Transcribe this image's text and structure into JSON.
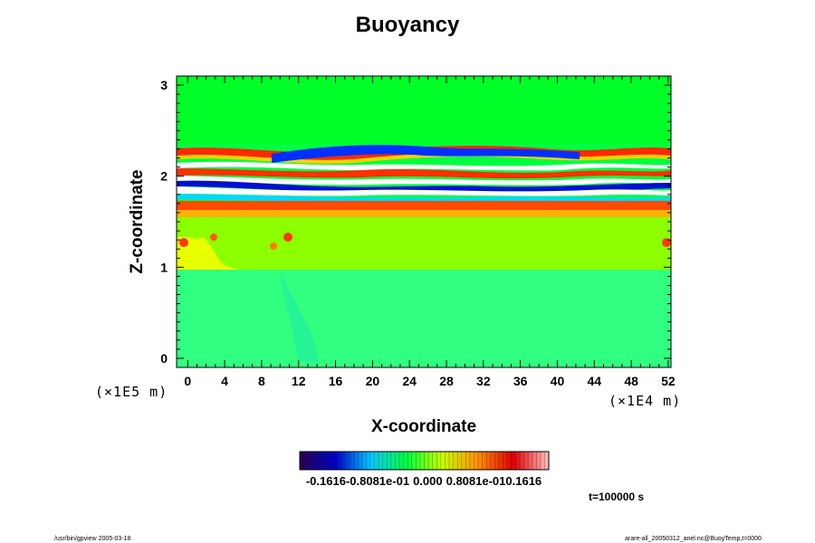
{
  "chart_data": {
    "type": "heatmap",
    "title": "Buoyancy",
    "xlabel": "X-coordinate",
    "ylabel": "Z-coordinate",
    "x_scale_note": "(×1E4 m)",
    "y_scale_note": "(×1E5 m)",
    "xlim": [
      -1.2,
      52.3
    ],
    "ylim": [
      -0.1,
      3.1
    ],
    "x_ticks": [
      "0",
      "4",
      "8",
      "12",
      "16",
      "20",
      "24",
      "28",
      "32",
      "36",
      "40",
      "44",
      "48",
      "52"
    ],
    "y_ticks": [
      "0",
      "1",
      "2",
      "3"
    ],
    "colorbar": {
      "min": -0.1616,
      "max": 0.1616,
      "labels": [
        "-0.1616",
        "-0.8081e-01",
        "0.000",
        "0.8081e-01",
        "0.1616"
      ],
      "colormap": [
        "#2a0050",
        "#0000c8",
        "#00c8ff",
        "#00ff40",
        "#c8ff00",
        "#ff9000",
        "#e00000",
        "#ffc0c0"
      ]
    },
    "bands": [
      {
        "z_from": 2.35,
        "z_to": 3.1,
        "value": 0.0,
        "desc": "uniform"
      },
      {
        "z_from": 1.75,
        "z_to": 2.35,
        "value": "mixed",
        "desc": "strong alternating positive/negative layers with saturated white regions"
      },
      {
        "z_from": 1.0,
        "z_to": 1.75,
        "value": 0.03
      },
      {
        "z_from": -0.1,
        "z_to": 1.0,
        "value": -0.02
      }
    ],
    "grid": false,
    "legend": "colorbar-bottom"
  },
  "time_label": "t=100000 s",
  "footer_left": "/usr/bin/gpview 2005-03-18",
  "footer_right": "arare-all_20050312_anel.nc@BuoyTemp,t=0000"
}
